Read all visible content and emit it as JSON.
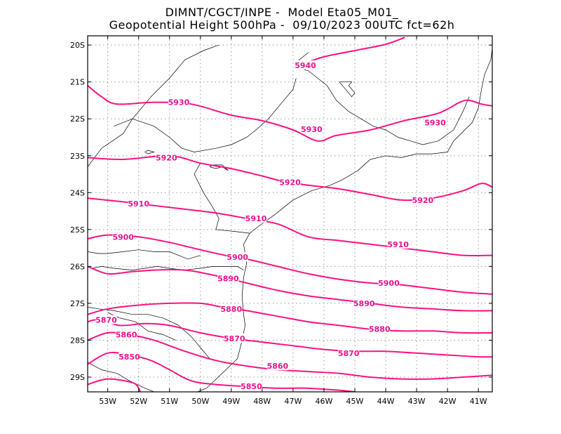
{
  "title": {
    "line1": "DIMNT/CGCT/INPE -  Model Eta05_M01_",
    "line2": "Geopotential Height 500hPa -  09/10/2023 00UTC fct=62h"
  },
  "colors": {
    "contour": "#ff1080",
    "label": "#ee1090",
    "coast": "#000000",
    "grid": "#999999",
    "frame": "#000000"
  },
  "axes": {
    "lat_ticks": [
      {
        "value": -20,
        "label": "20S"
      },
      {
        "value": -21,
        "label": "21S"
      },
      {
        "value": -22,
        "label": "22S"
      },
      {
        "value": -23,
        "label": "23S"
      },
      {
        "value": -24,
        "label": "24S"
      },
      {
        "value": -25,
        "label": "25S"
      },
      {
        "value": -26,
        "label": "26S"
      },
      {
        "value": -27,
        "label": "27S"
      },
      {
        "value": -28,
        "label": "28S"
      },
      {
        "value": -29,
        "label": "29S"
      }
    ],
    "lon_ticks": [
      {
        "value": -53,
        "label": "53W"
      },
      {
        "value": -52,
        "label": "52W"
      },
      {
        "value": -51,
        "label": "51W"
      },
      {
        "value": -50,
        "label": "50W"
      },
      {
        "value": -49,
        "label": "49W"
      },
      {
        "value": -48,
        "label": "48W"
      },
      {
        "value": -47,
        "label": "47W"
      },
      {
        "value": -46,
        "label": "46W"
      },
      {
        "value": -45,
        "label": "45W"
      },
      {
        "value": -44,
        "label": "44W"
      },
      {
        "value": -43,
        "label": "43W"
      },
      {
        "value": -42,
        "label": "42W"
      },
      {
        "value": -41,
        "label": "41W"
      }
    ],
    "lon_range": [
      -53.65,
      -40.55
    ],
    "lat_range": [
      -29.4,
      -19.75
    ],
    "grid": true
  },
  "contours": [
    {
      "value": 5940,
      "points": [
        [
          -46.8,
          -20.55
        ],
        [
          -46.0,
          -20.32
        ],
        [
          -45.0,
          -20.15
        ],
        [
          -44.0,
          -19.98
        ],
        [
          -43.4,
          -19.8
        ]
      ]
    },
    {
      "value": 5930,
      "points": [
        [
          -53.65,
          -21.1
        ],
        [
          -53.2,
          -21.4
        ],
        [
          -52.7,
          -21.6
        ],
        [
          -51.5,
          -21.55
        ],
        [
          -50.3,
          -21.6
        ],
        [
          -49.0,
          -21.9
        ],
        [
          -48.0,
          -22.05
        ],
        [
          -47.0,
          -22.3
        ],
        [
          -46.2,
          -22.6
        ],
        [
          -45.6,
          -22.45
        ],
        [
          -44.5,
          -22.3
        ],
        [
          -43.4,
          -22.05
        ],
        [
          -42.3,
          -21.85
        ],
        [
          -41.6,
          -21.55
        ],
        [
          -41.3,
          -21.5
        ],
        [
          -40.9,
          -21.6
        ],
        [
          -40.55,
          -21.65
        ]
      ]
    },
    {
      "value": 5920,
      "points": [
        [
          -53.65,
          -23.05
        ],
        [
          -52.5,
          -23.1
        ],
        [
          -51.0,
          -23.0
        ],
        [
          -50.0,
          -23.2
        ],
        [
          -49.0,
          -23.35
        ],
        [
          -48.0,
          -23.55
        ],
        [
          -47.3,
          -23.7
        ],
        [
          -46.5,
          -23.8
        ],
        [
          -45.5,
          -23.9
        ],
        [
          -44.5,
          -24.05
        ],
        [
          -43.5,
          -24.2
        ],
        [
          -42.5,
          -24.15
        ],
        [
          -41.5,
          -23.95
        ],
        [
          -40.9,
          -23.75
        ],
        [
          -40.55,
          -23.85
        ]
      ]
    },
    {
      "value": 5910,
      "points": [
        [
          -53.65,
          -24.15
        ],
        [
          -52.5,
          -24.25
        ],
        [
          -51.5,
          -24.35
        ],
        [
          -50.5,
          -24.45
        ],
        [
          -49.5,
          -24.55
        ],
        [
          -48.5,
          -24.7
        ],
        [
          -47.5,
          -24.85
        ],
        [
          -46.5,
          -25.2
        ],
        [
          -45.5,
          -25.3
        ],
        [
          -44.5,
          -25.4
        ],
        [
          -43.5,
          -25.5
        ],
        [
          -42.5,
          -25.6
        ],
        [
          -41.5,
          -25.7
        ],
        [
          -40.55,
          -25.7
        ]
      ]
    },
    {
      "value": 5900,
      "points": [
        [
          -53.65,
          -25.25
        ],
        [
          -53.0,
          -25.15
        ],
        [
          -52.0,
          -25.2
        ],
        [
          -51.0,
          -25.35
        ],
        [
          -50.0,
          -25.55
        ],
        [
          -49.2,
          -25.7
        ],
        [
          -48.5,
          -25.8
        ],
        [
          -47.5,
          -26.0
        ],
        [
          -46.5,
          -26.2
        ],
        [
          -45.5,
          -26.35
        ],
        [
          -44.5,
          -26.45
        ],
        [
          -43.5,
          -26.5
        ],
        [
          -42.5,
          -26.6
        ],
        [
          -41.5,
          -26.7
        ],
        [
          -40.55,
          -26.75
        ]
      ]
    },
    {
      "value": 5890,
      "points": [
        [
          -53.65,
          -26.0
        ],
        [
          -53.0,
          -26.2
        ],
        [
          -52.3,
          -26.15
        ],
        [
          -51.5,
          -26.1
        ],
        [
          -50.5,
          -26.1
        ],
        [
          -49.5,
          -26.25
        ],
        [
          -48.5,
          -26.45
        ],
        [
          -47.5,
          -26.65
        ],
        [
          -46.5,
          -26.8
        ],
        [
          -45.5,
          -26.9
        ],
        [
          -44.5,
          -27.0
        ],
        [
          -43.5,
          -27.1
        ],
        [
          -42.5,
          -27.15
        ],
        [
          -41.5,
          -27.2
        ],
        [
          -40.55,
          -27.2
        ]
      ]
    },
    {
      "value": 5880,
      "points": [
        [
          -53.65,
          -27.3
        ],
        [
          -53.0,
          -27.15
        ],
        [
          -52.0,
          -27.05
        ],
        [
          -51.0,
          -27.0
        ],
        [
          -50.0,
          -27.0
        ],
        [
          -49.3,
          -27.1
        ],
        [
          -48.5,
          -27.2
        ],
        [
          -47.5,
          -27.35
        ],
        [
          -46.5,
          -27.5
        ],
        [
          -45.5,
          -27.6
        ],
        [
          -44.5,
          -27.7
        ],
        [
          -43.5,
          -27.75
        ],
        [
          -42.5,
          -27.75
        ],
        [
          -41.5,
          -27.8
        ],
        [
          -40.55,
          -27.8
        ]
      ]
    },
    {
      "value": 5870,
      "points": [
        [
          -53.65,
          -27.5
        ],
        [
          -53.3,
          -27.45
        ],
        [
          -52.6,
          -27.6
        ],
        [
          -51.8,
          -27.55
        ],
        [
          -51.0,
          -27.6
        ],
        [
          -50.0,
          -27.8
        ],
        [
          -49.0,
          -27.95
        ],
        [
          -48.0,
          -28.05
        ],
        [
          -47.0,
          -28.15
        ],
        [
          -46.0,
          -28.25
        ],
        [
          -45.0,
          -28.3
        ],
        [
          -44.0,
          -28.3
        ],
        [
          -43.0,
          -28.35
        ],
        [
          -42.0,
          -28.4
        ],
        [
          -41.0,
          -28.45
        ],
        [
          -40.55,
          -28.45
        ]
      ]
    },
    {
      "value": 5860,
      "points": [
        [
          -53.65,
          -28.0
        ],
        [
          -53.0,
          -27.8
        ],
        [
          -52.3,
          -27.85
        ],
        [
          -51.5,
          -28.0
        ],
        [
          -50.5,
          -28.3
        ],
        [
          -49.5,
          -28.55
        ],
        [
          -48.5,
          -28.7
        ],
        [
          -47.5,
          -28.8
        ],
        [
          -46.5,
          -28.85
        ],
        [
          -45.5,
          -28.9
        ],
        [
          -44.5,
          -29.0
        ],
        [
          -43.5,
          -29.05
        ],
        [
          -42.5,
          -29.05
        ],
        [
          -41.5,
          -29.0
        ],
        [
          -40.55,
          -28.95
        ]
      ]
    },
    {
      "value": 5850,
      "points": [
        [
          -53.65,
          -28.65
        ],
        [
          -53.0,
          -28.35
        ],
        [
          -52.3,
          -28.4
        ],
        [
          -51.6,
          -28.55
        ],
        [
          -51.0,
          -28.8
        ],
        [
          -50.3,
          -29.1
        ],
        [
          -49.5,
          -29.2
        ],
        [
          -48.6,
          -29.25
        ],
        [
          -47.6,
          -29.3
        ],
        [
          -46.6,
          -29.3
        ],
        [
          -45.6,
          -29.35
        ],
        [
          -45.0,
          -29.4
        ]
      ]
    },
    {
      "value": 5850,
      "points": [
        [
          -53.65,
          -29.2
        ],
        [
          -53.0,
          -29.05
        ],
        [
          -52.2,
          -29.15
        ],
        [
          -52.0,
          -29.3
        ],
        [
          -51.95,
          -29.4
        ]
      ]
    }
  ],
  "contour_labels": [
    {
      "text": "5940",
      "lon": -46.6,
      "lat": -20.55
    },
    {
      "text": "5930",
      "lon": -50.7,
      "lat": -21.55
    },
    {
      "text": "5930",
      "lon": -46.4,
      "lat": -22.28
    },
    {
      "text": "5930",
      "lon": -42.4,
      "lat": -22.1
    },
    {
      "text": "5920",
      "lon": -51.1,
      "lat": -23.05
    },
    {
      "text": "5920",
      "lon": -47.1,
      "lat": -23.72
    },
    {
      "text": "5920",
      "lon": -42.8,
      "lat": -24.2
    },
    {
      "text": "5910",
      "lon": -52.0,
      "lat": -24.3
    },
    {
      "text": "5910",
      "lon": -48.2,
      "lat": -24.7
    },
    {
      "text": "5910",
      "lon": -43.6,
      "lat": -25.4
    },
    {
      "text": "5900",
      "lon": -52.5,
      "lat": -25.2
    },
    {
      "text": "5900",
      "lon": -48.8,
      "lat": -25.75
    },
    {
      "text": "5900",
      "lon": -43.9,
      "lat": -26.45
    },
    {
      "text": "5890",
      "lon": -49.1,
      "lat": -26.33
    },
    {
      "text": "5890",
      "lon": -44.7,
      "lat": -27.0
    },
    {
      "text": "5880",
      "lon": -49.0,
      "lat": -27.15
    },
    {
      "text": "5880",
      "lon": -44.2,
      "lat": -27.7
    },
    {
      "text": "5870",
      "lon": -53.05,
      "lat": -27.45
    },
    {
      "text": "5870",
      "lon": -48.9,
      "lat": -27.95
    },
    {
      "text": "5870",
      "lon": -45.2,
      "lat": -28.35
    },
    {
      "text": "5860",
      "lon": -52.4,
      "lat": -27.85
    },
    {
      "text": "5860",
      "lon": -47.5,
      "lat": -28.7
    },
    {
      "text": "5850",
      "lon": -52.3,
      "lat": -28.45
    },
    {
      "text": "5850",
      "lon": -48.35,
      "lat": -29.25
    }
  ],
  "coastlines": [
    [
      [
        -53.5,
        -26.05
      ],
      [
        -53.2,
        -26.0
      ],
      [
        -52.8,
        -26.05
      ],
      [
        -52.2,
        -26.1
      ],
      [
        -51.8,
        -26.05
      ],
      [
        -51.4,
        -26.0
      ],
      [
        -51.0,
        -26.05
      ],
      [
        -50.5,
        -26.1
      ],
      [
        -50.0,
        -26.05
      ],
      [
        -49.6,
        -26.0
      ],
      [
        -49.3,
        -26.0
      ],
      [
        -48.8,
        -26.0
      ],
      [
        -48.6,
        -26.1
      ]
    ],
    [
      [
        -49.4,
        -20.0
      ],
      [
        -49.9,
        -20.15
      ],
      [
        -50.5,
        -20.4
      ],
      [
        -51.0,
        -20.9
      ],
      [
        -51.6,
        -21.4
      ],
      [
        -52.2,
        -22.0
      ],
      [
        -52.5,
        -22.4
      ],
      [
        -53.2,
        -22.8
      ],
      [
        -53.65,
        -23.3
      ]
    ],
    [
      [
        -53.65,
        -25.6
      ],
      [
        -53.3,
        -25.65
      ],
      [
        -53.0,
        -25.65
      ],
      [
        -52.5,
        -25.6
      ],
      [
        -52.0,
        -25.55
      ],
      [
        -51.5,
        -25.6
      ],
      [
        -51.0,
        -25.6
      ],
      [
        -50.4,
        -25.8
      ],
      [
        -50.0,
        -25.7
      ]
    ],
    [
      [
        -50.0,
        -23.2
      ],
      [
        -50.2,
        -23.5
      ],
      [
        -49.9,
        -24.0
      ],
      [
        -49.6,
        -24.4
      ],
      [
        -49.4,
        -24.7
      ],
      [
        -49.5,
        -25.0
      ],
      [
        -48.9,
        -25.05
      ],
      [
        -48.4,
        -25.1
      ]
    ],
    [
      [
        -48.4,
        -25.1
      ],
      [
        -48.6,
        -25.4
      ],
      [
        -48.5,
        -25.9
      ],
      [
        -48.6,
        -26.3
      ],
      [
        -48.65,
        -26.8
      ],
      [
        -48.6,
        -27.3
      ],
      [
        -48.55,
        -27.6
      ],
      [
        -48.65,
        -28.0
      ],
      [
        -48.8,
        -28.5
      ],
      [
        -49.3,
        -28.9
      ],
      [
        -49.8,
        -29.3
      ],
      [
        -50.1,
        -29.4
      ]
    ],
    [
      [
        -48.4,
        -25.1
      ],
      [
        -48.1,
        -24.9
      ],
      [
        -47.6,
        -24.6
      ],
      [
        -47.0,
        -24.2
      ],
      [
        -46.4,
        -23.95
      ],
      [
        -45.8,
        -23.8
      ],
      [
        -45.4,
        -23.65
      ],
      [
        -44.9,
        -23.4
      ],
      [
        -44.5,
        -23.1
      ],
      [
        -44.0,
        -23.0
      ],
      [
        -43.5,
        -23.05
      ],
      [
        -43.0,
        -22.95
      ],
      [
        -42.5,
        -22.95
      ],
      [
        -42.0,
        -22.9
      ],
      [
        -41.8,
        -22.6
      ],
      [
        -41.2,
        -22.1
      ],
      [
        -41.0,
        -21.7
      ],
      [
        -40.9,
        -21.2
      ],
      [
        -40.8,
        -20.8
      ],
      [
        -40.6,
        -20.4
      ],
      [
        -40.55,
        -20.1
      ]
    ],
    [
      [
        -46.5,
        -20.2
      ],
      [
        -46.8,
        -20.4
      ],
      [
        -46.9,
        -20.6
      ],
      [
        -46.5,
        -20.7
      ],
      [
        -46.2,
        -20.9
      ],
      [
        -45.9,
        -21.1
      ],
      [
        -45.6,
        -21.5
      ],
      [
        -45.2,
        -21.8
      ],
      [
        -44.8,
        -22.0
      ],
      [
        -44.4,
        -22.2
      ],
      [
        -44.0,
        -22.3
      ],
      [
        -43.6,
        -22.5
      ],
      [
        -43.2,
        -22.6
      ],
      [
        -42.8,
        -22.7
      ],
      [
        -42.3,
        -22.6
      ],
      [
        -41.8,
        -22.3
      ],
      [
        -41.5,
        -21.8
      ],
      [
        -41.3,
        -21.4
      ]
    ],
    [
      [
        -52.8,
        -22.2
      ],
      [
        -52.2,
        -22.0
      ],
      [
        -51.5,
        -22.2
      ],
      [
        -51.0,
        -22.5
      ],
      [
        -50.6,
        -22.8
      ],
      [
        -50.2,
        -22.9
      ],
      [
        -49.5,
        -22.8
      ],
      [
        -49.0,
        -22.7
      ],
      [
        -48.5,
        -22.5
      ],
      [
        -48.2,
        -22.3
      ],
      [
        -47.8,
        -22.0
      ],
      [
        -47.4,
        -21.6
      ],
      [
        -47.0,
        -21.2
      ],
      [
        -46.9,
        -20.9
      ]
    ],
    [
      [
        -53.65,
        -27.1
      ],
      [
        -53.3,
        -27.15
      ],
      [
        -52.8,
        -27.2
      ],
      [
        -52.2,
        -27.3
      ],
      [
        -51.7,
        -27.3
      ],
      [
        -51.2,
        -27.4
      ],
      [
        -50.7,
        -27.6
      ],
      [
        -50.3,
        -27.9
      ],
      [
        -50.0,
        -28.2
      ],
      [
        -49.7,
        -28.5
      ],
      [
        -49.2,
        -28.6
      ]
    ],
    [
      [
        -53.65,
        -28.6
      ],
      [
        -53.2,
        -28.8
      ],
      [
        -52.7,
        -28.9
      ],
      [
        -52.3,
        -29.1
      ],
      [
        -51.8,
        -29.3
      ],
      [
        -51.5,
        -29.4
      ]
    ],
    [
      [
        -53.0,
        -27.25
      ],
      [
        -52.6,
        -27.4
      ],
      [
        -52.1,
        -27.5
      ],
      [
        -51.7,
        -27.75
      ],
      [
        -51.2,
        -27.85
      ],
      [
        -50.8,
        -28.0
      ]
    ]
  ],
  "lakes": [
    [
      [
        -51.8,
        -22.9
      ],
      [
        -51.7,
        -22.95
      ],
      [
        -51.5,
        -22.9
      ],
      [
        -51.7,
        -22.85
      ],
      [
        -51.8,
        -22.9
      ]
    ],
    [
      [
        -49.7,
        -23.3
      ],
      [
        -49.5,
        -23.35
      ],
      [
        -49.3,
        -23.3
      ],
      [
        -49.1,
        -23.4
      ],
      [
        -49.3,
        -23.25
      ],
      [
        -49.6,
        -23.25
      ],
      [
        -49.7,
        -23.3
      ]
    ],
    [
      [
        -45.5,
        -21.0
      ],
      [
        -45.3,
        -21.2
      ],
      [
        -45.1,
        -21.4
      ],
      [
        -45.0,
        -21.3
      ],
      [
        -45.2,
        -21.1
      ],
      [
        -45.1,
        -21.0
      ],
      [
        -45.3,
        -21.0
      ],
      [
        -45.5,
        -21.0
      ]
    ]
  ]
}
